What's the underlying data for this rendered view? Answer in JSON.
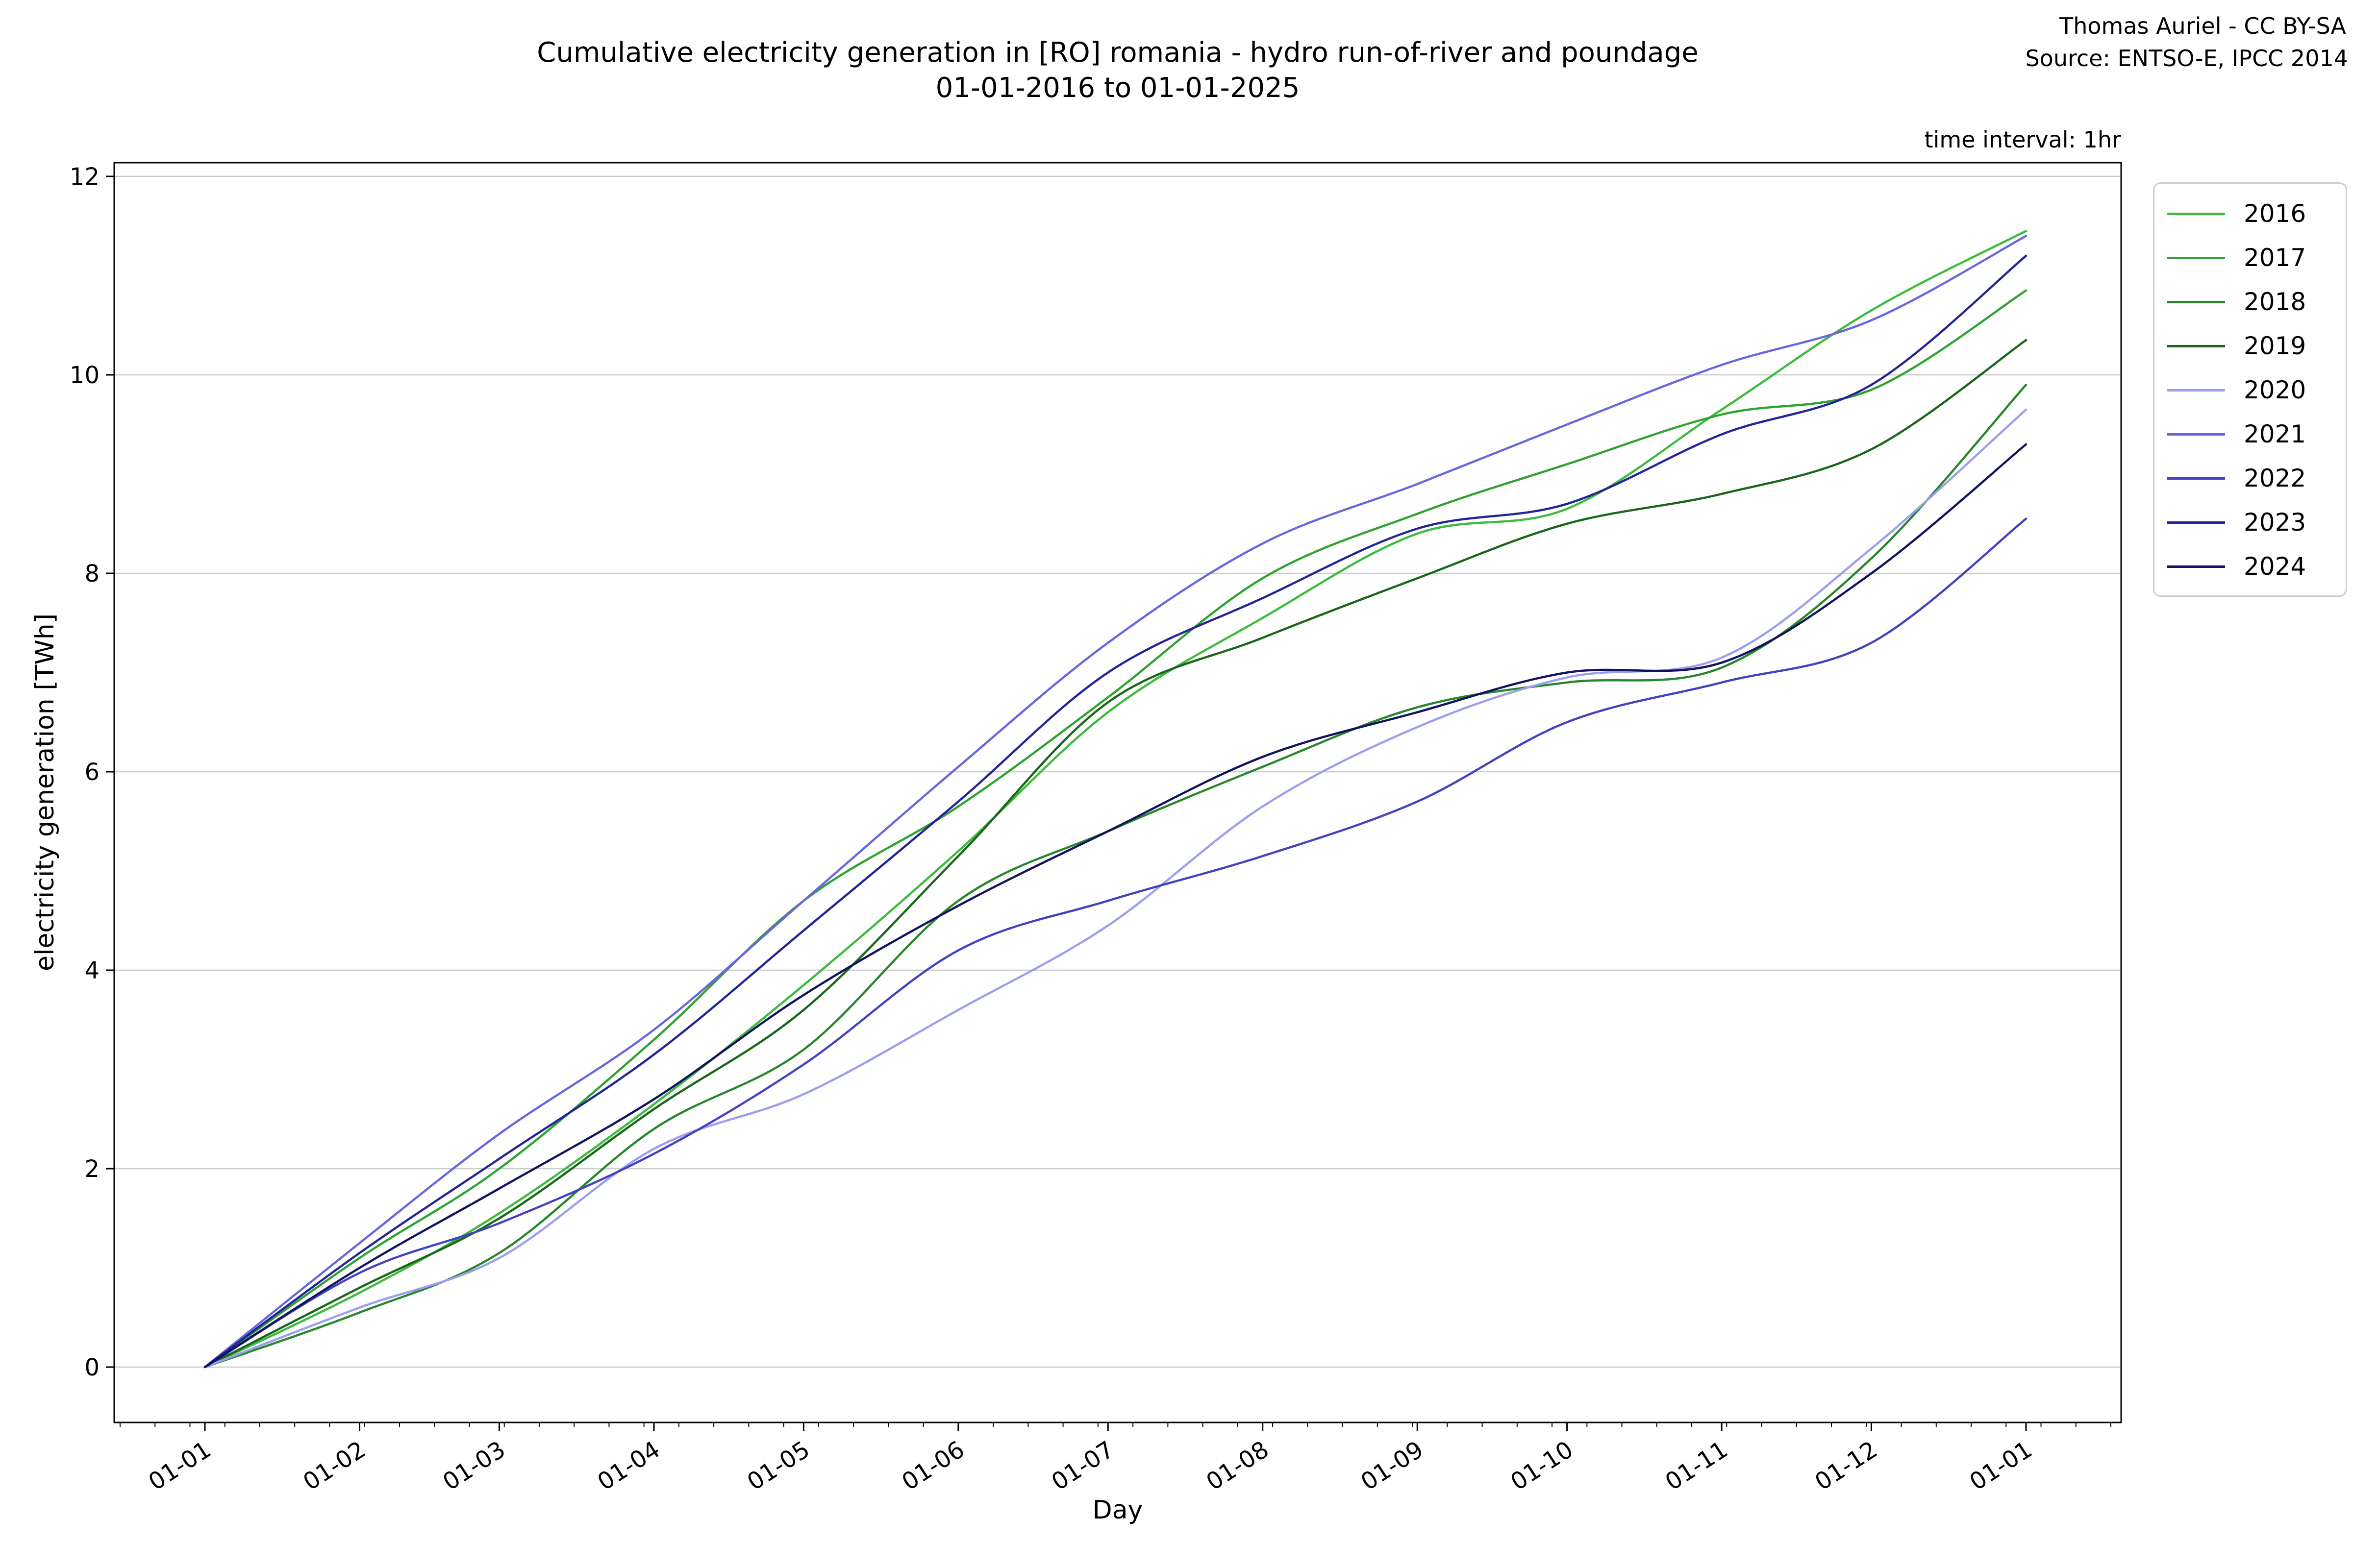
{
  "header": {
    "title_line1": "Cumulative electricity generation in [RO] romania - hydro run-of-river and poundage",
    "title_line2": "01-01-2016 to 01-01-2025",
    "attribution": "Thomas Auriel - CC BY-SA",
    "source": "Source: ENTSO-E, IPCC 2014",
    "time_interval_note": "time interval: 1hr"
  },
  "chart_data": {
    "type": "line",
    "title": "Cumulative electricity generation in [RO] romania - hydro run-of-river and poundage 01-01-2016 to 01-01-2025",
    "xlabel": "Day",
    "ylabel": "electricity generation [TWh]",
    "x_tick_labels": [
      "01-01",
      "01-02",
      "01-03",
      "01-04",
      "01-05",
      "01-06",
      "01-07",
      "01-08",
      "01-09",
      "01-10",
      "01-11",
      "01-12",
      "01-01"
    ],
    "x_tick_day_offsets": [
      0,
      31,
      59,
      90,
      120,
      151,
      181,
      212,
      243,
      273,
      304,
      334,
      365
    ],
    "yticks": [
      0,
      2,
      4,
      6,
      8,
      10,
      12
    ],
    "ylim": [
      -0.56,
      12.13
    ],
    "xlim_days": [
      -18.2,
      384.1
    ],
    "grid": true,
    "gridcolor": "#cccccc",
    "legend_position": "right-outside",
    "units": "TWh",
    "series": [
      {
        "name": "2016",
        "color": "#3dbb3d",
        "values": [
          0,
          0.75,
          1.55,
          2.65,
          3.85,
          5.2,
          6.6,
          7.55,
          8.4,
          8.65,
          9.65,
          10.65,
          11.45
        ]
      },
      {
        "name": "2017",
        "color": "#2fa32f",
        "values": [
          0,
          1.1,
          2.0,
          3.3,
          4.7,
          5.65,
          6.75,
          7.95,
          8.6,
          9.1,
          9.6,
          9.85,
          10.85
        ]
      },
      {
        "name": "2018",
        "color": "#27872b",
        "values": [
          0,
          0.55,
          1.15,
          2.4,
          3.2,
          4.7,
          5.4,
          6.05,
          6.65,
          6.9,
          7.05,
          8.15,
          9.9
        ]
      },
      {
        "name": "2019",
        "color": "#1a661a",
        "values": [
          0,
          0.8,
          1.5,
          2.6,
          3.6,
          5.15,
          6.7,
          7.35,
          7.95,
          8.5,
          8.8,
          9.25,
          10.35
        ]
      },
      {
        "name": "2020",
        "color": "#9e9ef0",
        "values": [
          0,
          0.6,
          1.1,
          2.2,
          2.75,
          3.6,
          4.45,
          5.65,
          6.45,
          6.95,
          7.15,
          8.25,
          9.65
        ]
      },
      {
        "name": "2021",
        "color": "#6767e0",
        "values": [
          0,
          1.25,
          2.35,
          3.4,
          4.7,
          6.05,
          7.3,
          8.3,
          8.9,
          9.5,
          10.1,
          10.55,
          11.4
        ]
      },
      {
        "name": "2022",
        "color": "#4242c4",
        "values": [
          0,
          0.95,
          1.45,
          2.15,
          3.05,
          4.2,
          4.7,
          5.15,
          5.7,
          6.5,
          6.9,
          7.3,
          8.55
        ]
      },
      {
        "name": "2023",
        "color": "#24249a",
        "values": [
          0,
          1.15,
          2.1,
          3.15,
          4.4,
          5.7,
          7.0,
          7.75,
          8.45,
          8.7,
          9.4,
          9.9,
          11.2
        ]
      },
      {
        "name": "2024",
        "color": "#121260",
        "values": [
          0,
          1.0,
          1.8,
          2.7,
          3.75,
          4.65,
          5.4,
          6.15,
          6.6,
          7.0,
          7.1,
          8.0,
          9.3
        ]
      }
    ]
  }
}
